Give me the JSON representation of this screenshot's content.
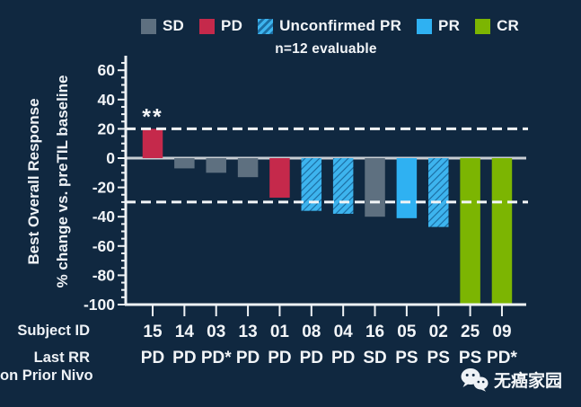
{
  "legend": {
    "items": [
      {
        "key": "sd",
        "label": "SD"
      },
      {
        "key": "pd",
        "label": "PD"
      },
      {
        "key": "upr",
        "label": "Unconfirmed PR",
        "hatch": true
      },
      {
        "key": "pr",
        "label": "PR"
      },
      {
        "key": "cr",
        "label": "CR"
      }
    ]
  },
  "chart_data": {
    "type": "bar",
    "subtitle": "n=12 evaluable",
    "ylabel_line1": "Best Overall Response",
    "ylabel_line2": "% change vs. preTIL baseline",
    "ylim": [
      -100,
      60
    ],
    "ytick_interval": 20,
    "yminor_interval": 5,
    "yticks": [
      60,
      40,
      20,
      0,
      -20,
      -40,
      -60,
      -80,
      -100
    ],
    "reference_lines": [
      20,
      -30
    ],
    "grid": "off",
    "legend_position": "top",
    "categories": [
      "15",
      "14",
      "03",
      "13",
      "01",
      "08",
      "04",
      "16",
      "05",
      "02",
      "25",
      "09"
    ],
    "values": [
      20,
      -7,
      -10,
      -13,
      -27,
      -36,
      -38,
      -40,
      -41,
      -47,
      -100,
      -100
    ],
    "bar_types": [
      "PD",
      "SD",
      "SD",
      "SD",
      "PD",
      "UPR",
      "UPR",
      "SD",
      "PR",
      "UPR",
      "CR",
      "CR"
    ],
    "last_rr": [
      "PD",
      "PD",
      "PD*",
      "PD",
      "PD",
      "PD",
      "PD",
      "SD",
      "PS",
      "PS",
      "PS",
      "PD*"
    ],
    "annotations": [
      {
        "category": "15",
        "text": "**"
      }
    ],
    "row_labels": {
      "subject_id": "Subject ID",
      "last_rr_line1": "Last RR",
      "last_rr_line2": "on Prior Nivo"
    }
  },
  "colors": {
    "background": "#102840",
    "text": "#f2f5f8",
    "axis": "#eef2f5",
    "zero_line": "#c9ced3",
    "dashed_line": "#f2f5f7",
    "bar_sd": "#5e7080",
    "bar_pd": "#c5294b",
    "bar_pr": "#2fb1f2",
    "bar_cr": "#7cb502",
    "hatch_light": "#3db4ee",
    "hatch_dark": "#1c6fa4"
  },
  "watermark": {
    "icon": "wechat-icon",
    "text": "无癌家园"
  }
}
